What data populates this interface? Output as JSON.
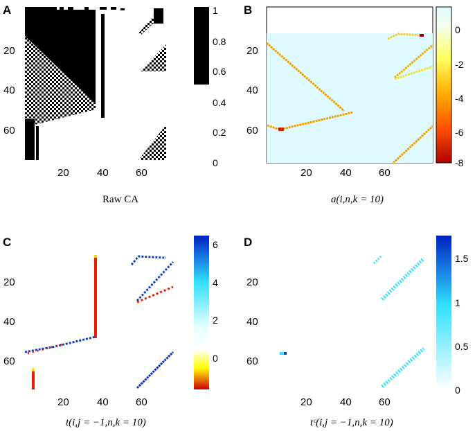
{
  "chart_data": [
    {
      "type": "heatmap",
      "panel_label": "A",
      "caption": "Raw CA",
      "xticks": [
        "20",
        "40",
        "60"
      ],
      "yticks": [
        "20",
        "40",
        "60"
      ],
      "colorbar_ticks": [
        "1",
        "0.8",
        "0.6",
        "0.4",
        "0.2",
        "0"
      ],
      "colorbar_range": [
        0,
        1
      ],
      "grid_size": [
        75,
        75
      ],
      "colormap": [
        "#ffffff",
        "#000000"
      ]
    },
    {
      "type": "heatmap",
      "panel_label": "B",
      "caption": "a(i,n,k = 10)",
      "xticks": [
        "20",
        "40",
        "60"
      ],
      "yticks": [
        "20",
        "40",
        "60"
      ],
      "colorbar_ticks": [
        "0",
        "-2",
        "-4",
        "-6",
        "-8"
      ],
      "colorbar_range": [
        -8,
        1
      ],
      "grid_size": [
        75,
        75
      ],
      "colormap": [
        "#b00000",
        "#ff3000",
        "#ffa000",
        "#ffff60",
        "#dffaff"
      ]
    },
    {
      "type": "heatmap",
      "panel_label": "C",
      "caption": "t(i,j = −1,n,k = 10)",
      "xticks": [
        "20",
        "40",
        "60"
      ],
      "yticks": [
        "20",
        "40",
        "60"
      ],
      "colorbar_ticks": [
        "6",
        "4",
        "2",
        "0"
      ],
      "colorbar_range": [
        -2,
        6.5
      ],
      "grid_size": [
        75,
        75
      ],
      "colormap": [
        "#d00000",
        "#ffff00",
        "#ffffff",
        "#30e0ff",
        "#0020c0"
      ]
    },
    {
      "type": "heatmap",
      "panel_label": "D",
      "caption": "tᶜ(i,j = −1,n,k = 10)",
      "xticks": [
        "20",
        "40",
        "60"
      ],
      "yticks": [
        "20",
        "40",
        "60"
      ],
      "colorbar_ticks": [
        "1.5",
        "1",
        "0.5",
        "0"
      ],
      "colorbar_range": [
        0,
        1.75
      ],
      "grid_size": [
        75,
        75
      ],
      "colormap": [
        "#ffffff",
        "#30e0ff",
        "#0020c0"
      ]
    }
  ]
}
